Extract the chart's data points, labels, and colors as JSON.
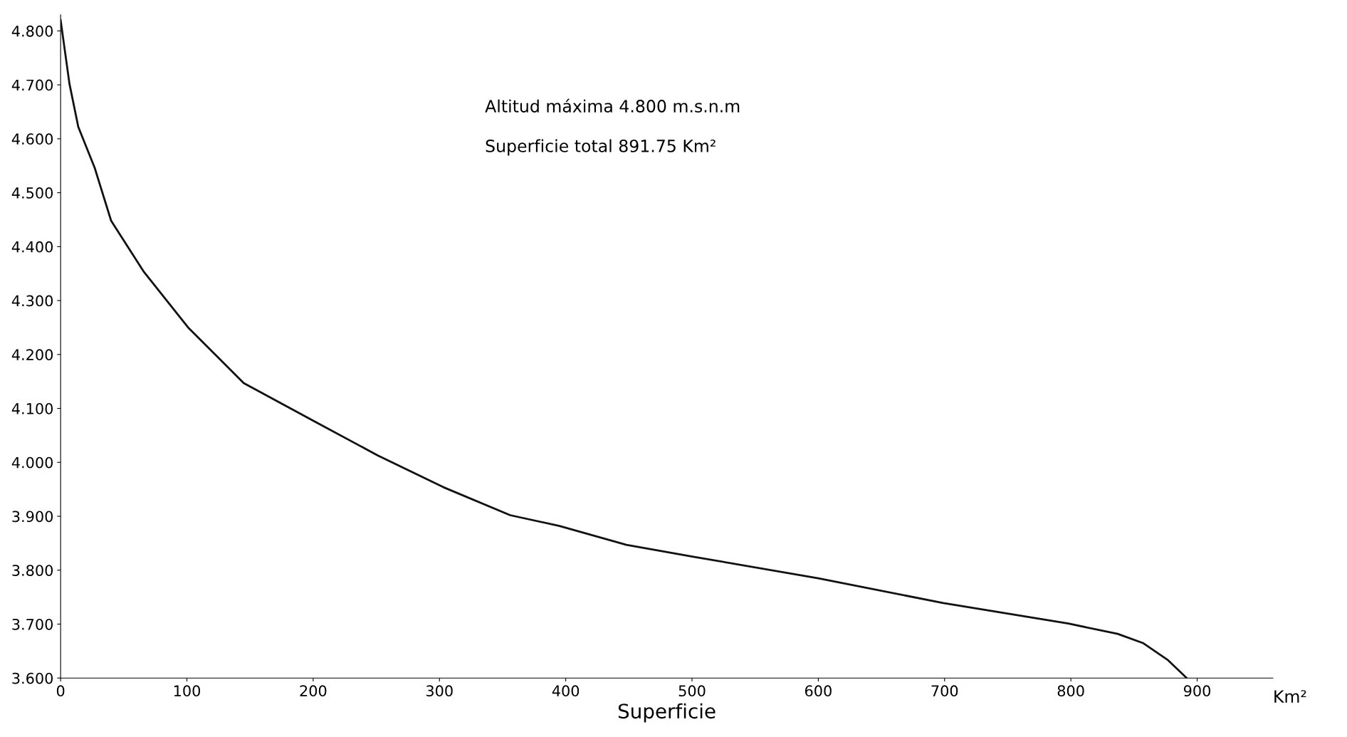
{
  "chart_data": {
    "type": "line",
    "xlabel": "Superficie",
    "annotations": [
      "Altitud máxima 4.800 m.s.n.m",
      "Superficie total 891.75 Km²",
      "Km²"
    ],
    "x": [
      0,
      7,
      14,
      27,
      40,
      66,
      101,
      145,
      201,
      251,
      303,
      356,
      395,
      448,
      501,
      600,
      699,
      798,
      837,
      857,
      877,
      891.75
    ],
    "series": [
      {
        "color": "#111111",
        "values": [
          4.82,
          4.702,
          4.622,
          4.546,
          4.448,
          4.353,
          4.25,
          4.147,
          4.076,
          4.013,
          3.954,
          3.902,
          3.882,
          3.847,
          3.825,
          3.785,
          3.739,
          3.701,
          3.682,
          3.665,
          3.633,
          3.6
        ]
      }
    ],
    "xlim": [
      0,
      960
    ],
    "ylim": [
      3.6,
      4.83
    ],
    "xticks": [
      0,
      100,
      200,
      300,
      400,
      500,
      600,
      700,
      800,
      900
    ],
    "yticks": [
      {
        "value": 3.6,
        "label": "3.600"
      },
      {
        "value": 3.7,
        "label": "3.700"
      },
      {
        "value": 3.8,
        "label": "3.800"
      },
      {
        "value": 3.9,
        "label": "3.900"
      },
      {
        "value": 4.0,
        "label": "4.000"
      },
      {
        "value": 4.1,
        "label": "4.100"
      },
      {
        "value": 4.2,
        "label": "4.200"
      },
      {
        "value": 4.3,
        "label": "4.300"
      },
      {
        "value": 4.4,
        "label": "4.400"
      },
      {
        "value": 4.5,
        "label": "4.500"
      },
      {
        "value": 4.6,
        "label": "4.600"
      },
      {
        "value": 4.7,
        "label": "4.700"
      },
      {
        "value": 4.8,
        "label": "4.800"
      }
    ],
    "grid": false,
    "legend": false,
    "marker": "none",
    "line_style": "solid"
  }
}
